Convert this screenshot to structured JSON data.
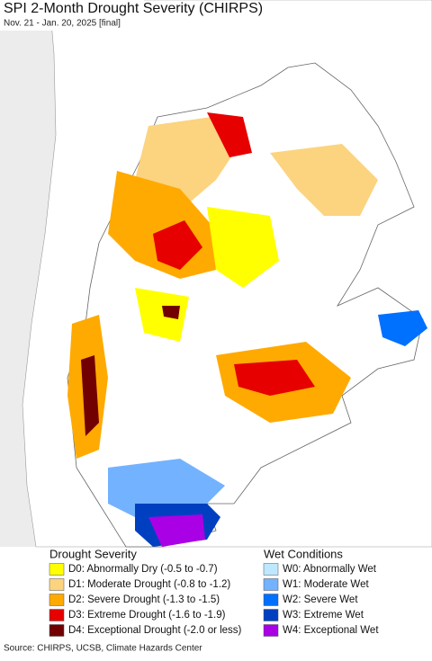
{
  "header": {
    "title": "SPI 2-Month Drought Severity (CHIRPS)",
    "subtitle": "Nov. 21 - Jan. 20, 2025 [final]"
  },
  "legend": {
    "drought": {
      "heading": "Drought Severity",
      "items": [
        {
          "label": "D0: Abnormally Dry (-0.5 to -0.7)",
          "color": "#ffff00"
        },
        {
          "label": "D1: Moderate Drought (-0.8 to -1.2)",
          "color": "#fcd37f"
        },
        {
          "label": "D2: Severe Drought (-1.3 to -1.5)",
          "color": "#ffaa00"
        },
        {
          "label": "D3: Extreme Drought (-1.6 to -1.9)",
          "color": "#e60000"
        },
        {
          "label": "D4: Exceptional Drought (-2.0 or less)",
          "color": "#730000"
        }
      ]
    },
    "wet": {
      "heading": "Wet Conditions",
      "items": [
        {
          "label": "W0: Abnormally Wet",
          "color": "#bee8ff"
        },
        {
          "label": "W1: Moderate Wet",
          "color": "#73b2ff"
        },
        {
          "label": "W2: Severe Wet",
          "color": "#0070ff"
        },
        {
          "label": "W3: Extreme Wet",
          "color": "#0040c0"
        },
        {
          "label": "W4: Exceptional Wet",
          "color": "#a900e6"
        }
      ]
    }
  },
  "footer": {
    "source": "Source: CHIRPS, UCSB, Climate Hazards Center"
  }
}
